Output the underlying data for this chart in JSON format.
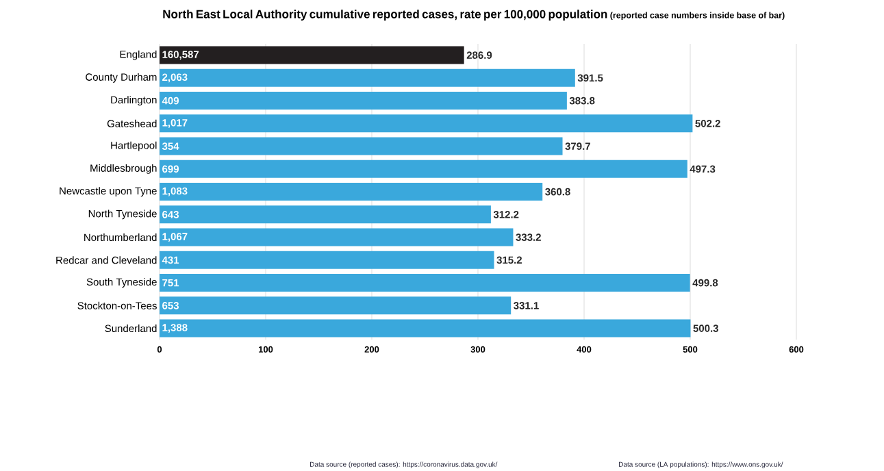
{
  "chart_data": {
    "type": "bar",
    "orientation": "horizontal",
    "title": "North East Local Authority cumulative reported cases, rate per 100,000 population",
    "subtitle": "(reported case numbers inside base of bar)",
    "categories": [
      "England",
      "County Durham",
      "Darlington",
      "Gateshead",
      "Hartlepool",
      "Middlesbrough",
      "Newcastle upon Tyne",
      "North Tyneside",
      "Northumberland",
      "Redcar and Cleveland",
      "South Tyneside",
      "Stockton-on-Tees",
      "Sunderland"
    ],
    "values": [
      286.9,
      391.5,
      383.8,
      502.2,
      379.7,
      497.3,
      360.8,
      312.2,
      333.2,
      315.2,
      499.8,
      331.1,
      500.3
    ],
    "colors": [
      "#231f20",
      "#3aa8dc",
      "#3aa8dc",
      "#3aa8dc",
      "#3aa8dc",
      "#3aa8dc",
      "#3aa8dc",
      "#3aa8dc",
      "#3aa8dc",
      "#3aa8dc",
      "#3aa8dc",
      "#3aa8dc",
      "#3aa8dc"
    ],
    "data_labels": true,
    "xlim": [
      0,
      600
    ],
    "xticks": [
      0,
      100,
      200,
      300,
      400,
      500,
      600
    ],
    "grid": "x",
    "annotations": [
      {
        "text": "160,587",
        "y": "England"
      },
      {
        "text": "2,063",
        "y": "County Durham"
      },
      {
        "text": "409",
        "y": "Darlington"
      },
      {
        "text": "1,017",
        "y": "Gateshead"
      },
      {
        "text": "354",
        "y": "Hartlepool"
      },
      {
        "text": "699",
        "y": "Middlesbrough"
      },
      {
        "text": "1,083",
        "y": "Newcastle upon Tyne"
      },
      {
        "text": "643",
        "y": "North Tyneside"
      },
      {
        "text": "1,067",
        "y": "Northumberland"
      },
      {
        "text": "431",
        "y": "Redcar and Cleveland"
      },
      {
        "text": "751",
        "y": "South Tyneside"
      },
      {
        "text": "653",
        "y": "Stockton-on-Tees"
      },
      {
        "text": "1,388",
        "y": "Sunderland"
      },
      "Data source (reported cases): https://coronavirus.data.gov.uk/",
      "Data source (LA populations): https://www.ons.gov.uk/"
    ]
  }
}
